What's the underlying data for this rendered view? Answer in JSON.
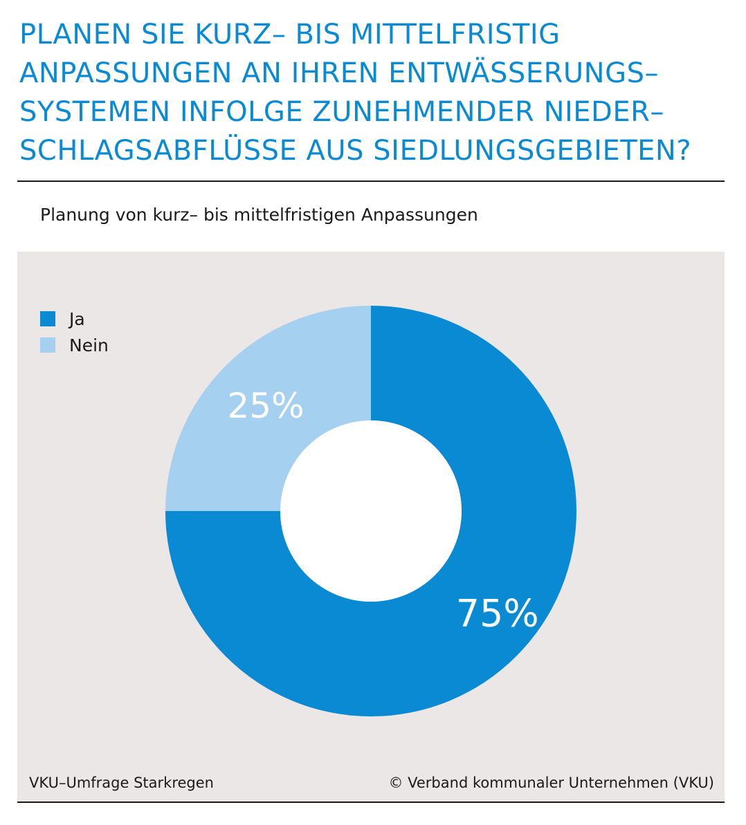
{
  "title_lines": [
    "PLANEN SIE KURZ– BIS MITTELFRISTIG",
    "ANPASSUNGEN AN IHREN ENTWÄSSERUNGS–",
    "SYSTEMEN INFOLGE ZUNEHMENDER NIEDER–",
    "SCHLAGSABFLÜSSE AUS SIEDLUNGSGEBIETEN?"
  ],
  "subtitle": "Planung von kurz– bis mittelfristigen Anpassungen",
  "footer": {
    "source": "VKU–Umfrage Starkregen",
    "copyright": "© Verband kommunaler Unternehmen (VKU)"
  },
  "colors": {
    "title": "#0a8ad2",
    "panel": "#ebe7e7",
    "ja": "#0a8ad2",
    "nein": "#a6d0f0",
    "hole": "#ffffff"
  },
  "chart_data": {
    "type": "pie",
    "donut": true,
    "categories": [
      "Ja",
      "Nein"
    ],
    "values": [
      75,
      25
    ],
    "labels": [
      "75%",
      "25%"
    ],
    "colors": [
      "#0a8ad2",
      "#a6d0f0"
    ],
    "legend": [
      "Ja",
      "Nein"
    ],
    "legend_position": "top-left",
    "start_angle": "12 o'clock",
    "direction": "clockwise"
  }
}
